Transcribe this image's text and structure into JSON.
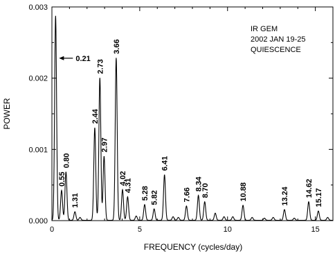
{
  "chart_data": {
    "type": "line",
    "info_lines": [
      "IR GEM",
      "2002 JAN 19-25",
      "QUIESCENCE"
    ],
    "xlabel": "FREQUENCY (cycles/day)",
    "ylabel": "POWER",
    "xlim": [
      0,
      16
    ],
    "ylim": [
      0,
      0.003
    ],
    "x_ticks": [
      0,
      5,
      10,
      15
    ],
    "x_tick_labels": [
      "0",
      "5",
      "10",
      "15"
    ],
    "y_ticks": [
      0,
      0.001,
      0.002,
      0.003
    ],
    "y_tick_labels": [
      "0.000",
      "0.001",
      "0.002",
      "0.003"
    ],
    "grid": false,
    "arrow_annotation": {
      "label": "0.21",
      "freq": 0.21,
      "at_power": 0.00228
    },
    "peak_labels": [
      {
        "freq": 0.55,
        "label": "0.55",
        "power": 0.00042
      },
      {
        "freq": 0.8,
        "label": "0.80",
        "power": 0.00068
      },
      {
        "freq": 1.31,
        "label": "1.31",
        "power": 0.00012
      },
      {
        "freq": 2.44,
        "label": "2.44",
        "power": 0.0013
      },
      {
        "freq": 2.73,
        "label": "2.73",
        "power": 0.002
      },
      {
        "freq": 2.97,
        "label": "2.97",
        "power": 0.0009
      },
      {
        "freq": 3.66,
        "label": "3.66",
        "power": 0.00228
      },
      {
        "freq": 4.02,
        "label": "4.02",
        "power": 0.00043
      },
      {
        "freq": 4.31,
        "label": "4.31",
        "power": 0.00033
      },
      {
        "freq": 5.28,
        "label": "5.28",
        "power": 0.00022
      },
      {
        "freq": 5.82,
        "label": "5.82",
        "power": 0.00016
      },
      {
        "freq": 6.41,
        "label": "6.41",
        "power": 0.00064
      },
      {
        "freq": 7.66,
        "label": "7.66",
        "power": 0.0002
      },
      {
        "freq": 8.34,
        "label": "8.34",
        "power": 0.00035
      },
      {
        "freq": 8.7,
        "label": "8.70",
        "power": 0.00026
      },
      {
        "freq": 10.88,
        "label": "10.88",
        "power": 0.00021
      },
      {
        "freq": 13.24,
        "label": "13.24",
        "power": 0.00015
      },
      {
        "freq": 14.62,
        "label": "14.62",
        "power": 0.00026
      },
      {
        "freq": 15.17,
        "label": "15.17",
        "power": 0.00013
      }
    ],
    "series": [
      {
        "peaks": [
          {
            "freq": 0.21,
            "power": 0.00287
          },
          {
            "freq": 0.55,
            "power": 0.00042
          },
          {
            "freq": 0.8,
            "power": 0.00068
          },
          {
            "freq": 1.31,
            "power": 0.00012
          },
          {
            "freq": 2.44,
            "power": 0.0013
          },
          {
            "freq": 2.73,
            "power": 0.002
          },
          {
            "freq": 2.97,
            "power": 0.0009
          },
          {
            "freq": 3.66,
            "power": 0.00228
          },
          {
            "freq": 4.02,
            "power": 0.00043
          },
          {
            "freq": 4.31,
            "power": 0.00033
          },
          {
            "freq": 5.28,
            "power": 0.00022
          },
          {
            "freq": 5.82,
            "power": 0.00016
          },
          {
            "freq": 6.41,
            "power": 0.00064
          },
          {
            "freq": 7.66,
            "power": 0.0002
          },
          {
            "freq": 8.34,
            "power": 0.00035
          },
          {
            "freq": 8.7,
            "power": 0.00026
          },
          {
            "freq": 10.88,
            "power": 0.00021
          },
          {
            "freq": 13.24,
            "power": 0.00015
          },
          {
            "freq": 14.62,
            "power": 0.00026
          },
          {
            "freq": 15.17,
            "power": 0.00013
          },
          {
            "freq": 1.6,
            "power": 4e-05
          },
          {
            "freq": 4.8,
            "power": 6e-05
          },
          {
            "freq": 6.9,
            "power": 5e-05
          },
          {
            "freq": 7.2,
            "power": 4e-05
          },
          {
            "freq": 9.3,
            "power": 0.0001
          },
          {
            "freq": 9.8,
            "power": 5e-05
          },
          {
            "freq": 10.3,
            "power": 5e-05
          },
          {
            "freq": 11.4,
            "power": 4e-05
          },
          {
            "freq": 12.1,
            "power": 3e-05
          },
          {
            "freq": 12.6,
            "power": 4e-05
          },
          {
            "freq": 13.8,
            "power": 3e-05
          },
          {
            "freq": 15.7,
            "power": 4e-05
          }
        ]
      }
    ]
  }
}
